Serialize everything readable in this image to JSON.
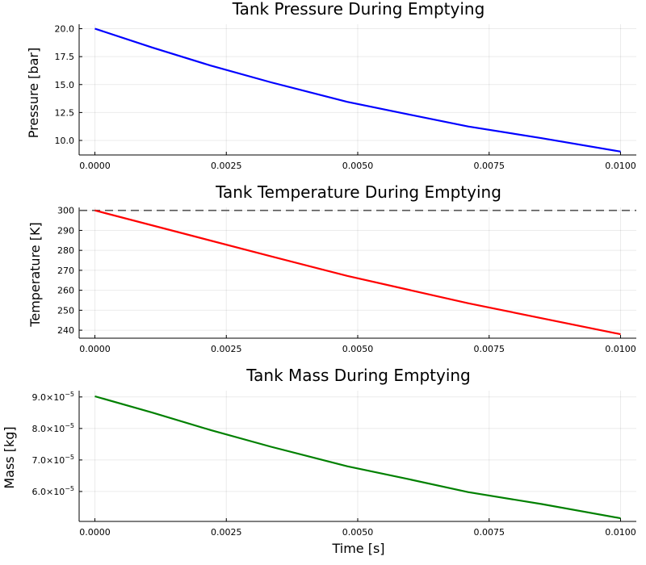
{
  "chart_data": [
    {
      "type": "line",
      "title": "Tank Pressure During Emptying",
      "xlabel": "",
      "ylabel": "Pressure [bar]",
      "xlim": [
        -0.0003,
        0.0103
      ],
      "ylim": [
        8.7,
        20.4
      ],
      "xticks": [
        0,
        0.0025,
        0.005,
        0.0075,
        0.01
      ],
      "xtick_labels": [
        "0.0000",
        "0.0025",
        "0.0050",
        "0.0075",
        "0.0100"
      ],
      "yticks": [
        10,
        12.5,
        15,
        17.5,
        20
      ],
      "ytick_labels": [
        "10.0",
        "12.5",
        "15.0",
        "17.5",
        "20.0"
      ],
      "grid": true,
      "series": [
        {
          "color": "#0000ff",
          "x": [
            0,
            0.0011,
            0.0022,
            0.00335,
            0.0048,
            0.006,
            0.0071,
            0.0085,
            0.01
          ],
          "y": [
            20.0,
            18.3,
            16.7,
            15.2,
            13.45,
            12.3,
            11.25,
            10.2,
            9.0
          ]
        }
      ]
    },
    {
      "type": "line",
      "title": "Tank Temperature During Emptying",
      "xlabel": "",
      "ylabel": "Temperature [K]",
      "xlim": [
        -0.0003,
        0.0103
      ],
      "ylim": [
        236,
        301.5
      ],
      "xticks": [
        0,
        0.0025,
        0.005,
        0.0075,
        0.01
      ],
      "xtick_labels": [
        "0.0000",
        "0.0025",
        "0.0050",
        "0.0075",
        "0.0100"
      ],
      "yticks": [
        240,
        250,
        260,
        270,
        280,
        290,
        300
      ],
      "ytick_labels": [
        "240",
        "250",
        "260",
        "270",
        "280",
        "290",
        "300"
      ],
      "grid": true,
      "series": [
        {
          "color": "#ff0000",
          "x": [
            0,
            0.00335,
            0.0048,
            0.0071,
            0.01
          ],
          "y": [
            300,
            277,
            267.2,
            253.5,
            238
          ]
        }
      ],
      "reference_lines": [
        {
          "y": 300,
          "color": "#555555",
          "style": "dashed"
        }
      ]
    },
    {
      "type": "line",
      "title": "Tank Mass During Emptying",
      "xlabel": "Time [s]",
      "ylabel": "Mass [kg]",
      "xlim": [
        -0.0003,
        0.0103
      ],
      "ylim": [
        5.05e-05,
        9.2e-05
      ],
      "xticks": [
        0,
        0.0025,
        0.005,
        0.0075,
        0.01
      ],
      "xtick_labels": [
        "0.0000",
        "0.0025",
        "0.0050",
        "0.0075",
        "0.0100"
      ],
      "yticks": [
        6e-05,
        7e-05,
        8e-05,
        9e-05
      ],
      "ytick_mantissas": [
        "6.0",
        "7.0",
        "8.0",
        "9.0"
      ],
      "ytick_times": "×10",
      "ytick_exponent": "−5",
      "grid": true,
      "series": [
        {
          "color": "#008000",
          "x": [
            0,
            0.0011,
            0.0022,
            0.00335,
            0.0048,
            0.006,
            0.0071,
            0.0085,
            0.01
          ],
          "y": [
            9.02e-05,
            8.5e-05,
            7.95e-05,
            7.42e-05,
            6.8e-05,
            6.38e-05,
            5.98e-05,
            5.6e-05,
            5.15e-05
          ]
        }
      ]
    }
  ]
}
